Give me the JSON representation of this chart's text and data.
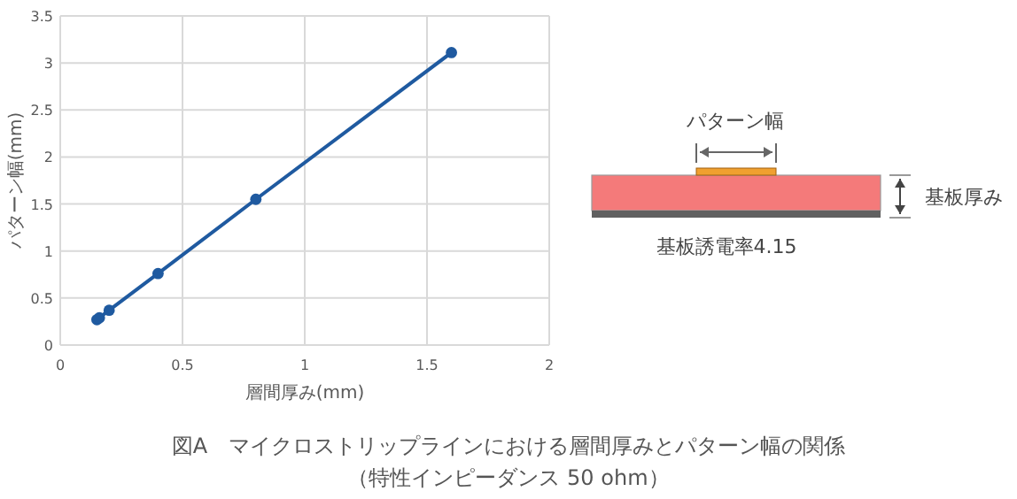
{
  "chart_data": {
    "type": "line",
    "title": "図A　マイクロストリップラインにおける層間厚みとパターン幅の関係",
    "subtitle": "（特性インピーダンス 50 ohm）",
    "xlabel": "層間厚み(mm)",
    "ylabel": "パターン幅(mm)",
    "x": [
      0.15,
      0.16,
      0.2,
      0.4,
      0.8,
      1.6
    ],
    "series": [
      {
        "color": "#1f5aa0",
        "values": [
          0.27,
          0.29,
          0.37,
          0.76,
          1.55,
          3.11
        ]
      }
    ],
    "xlim": [
      0,
      2
    ],
    "xticks": [
      0,
      0.5,
      1,
      1.5,
      2
    ],
    "ylim": [
      0,
      3.5
    ],
    "yticks": [
      0,
      0.5,
      1,
      1.5,
      2,
      2.5,
      3,
      3.5
    ],
    "grid": true,
    "marker": "circle",
    "line_style": "solid",
    "annotations": [
      "パターン幅",
      "基板厚み",
      "基板誘電率4.15"
    ]
  }
}
